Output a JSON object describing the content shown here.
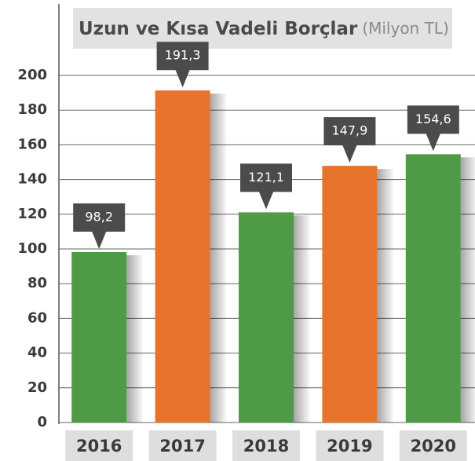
{
  "chart_data": {
    "type": "bar",
    "title": "Uzun ve Kısa Vadeli Borçlar",
    "subtitle": "(Milyon TL)",
    "categories": [
      "2016",
      "2017",
      "2018",
      "2019",
      "2020"
    ],
    "values": [
      98.2,
      191.3,
      121.1,
      147.9,
      154.6
    ],
    "value_labels": [
      "98,2",
      "191,3",
      "121,1",
      "147,9",
      "154,6"
    ],
    "colors": [
      "#4f9a47",
      "#e8732a",
      "#4f9a47",
      "#e8732a",
      "#4f9a47"
    ],
    "ylim": [
      0,
      200
    ],
    "yticks": [
      0,
      20,
      40,
      60,
      80,
      100,
      120,
      140,
      160,
      180,
      200
    ],
    "grid": true
  }
}
